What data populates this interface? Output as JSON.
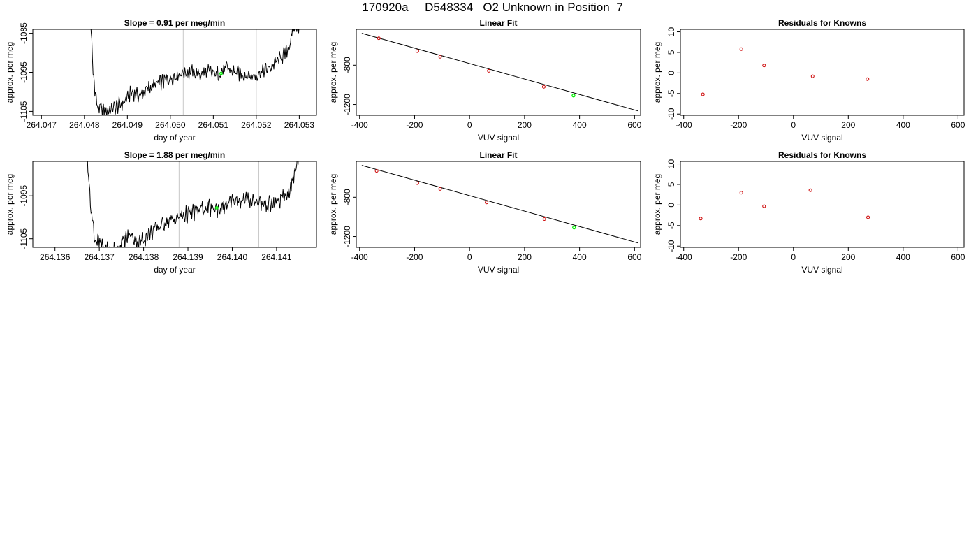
{
  "page_title": "170920a     D548334   O2 Unknown in Position  7",
  "chart_data": [
    {
      "id": "ts1",
      "type": "line",
      "title": "Slope =  0.91  per meg/min",
      "xlabel": "day of year",
      "ylabel": "approx. per meg",
      "xlim": [
        264.0468,
        264.0534
      ],
      "ylim": [
        -1106,
        -1084
      ],
      "x_ticks": [
        264.047,
        264.048,
        264.049,
        264.05,
        264.051,
        264.052,
        264.053
      ],
      "x_tick_labels": [
        "264.047",
        "264.048",
        "264.049",
        "264.050",
        "264.051",
        "264.052",
        "264.053"
      ],
      "y_ticks": [
        -1085,
        -1095,
        -1105
      ],
      "y_tick_labels": [
        "-1085",
        "-1095",
        "-1105"
      ],
      "vlines": [
        264.0503,
        264.052
      ],
      "x_start": 264.0481,
      "x_end": 264.053,
      "anchors": [
        [
          264.0481,
          -1070
        ],
        [
          264.0482,
          -1095
        ],
        [
          264.0483,
          -1104
        ],
        [
          264.0485,
          -1105
        ],
        [
          264.0487,
          -1104
        ],
        [
          264.0489,
          -1103
        ],
        [
          264.0491,
          -1100
        ],
        [
          264.0493,
          -1101
        ],
        [
          264.0495,
          -1099
        ],
        [
          264.0497,
          -1098
        ],
        [
          264.0499,
          -1097
        ],
        [
          264.0501,
          -1096
        ],
        [
          264.0503,
          -1095
        ],
        [
          264.0505,
          -1095
        ],
        [
          264.0507,
          -1095.5
        ],
        [
          264.0509,
          -1095
        ],
        [
          264.0511,
          -1095.5
        ],
        [
          264.0513,
          -1094
        ],
        [
          264.0515,
          -1095
        ],
        [
          264.0517,
          -1095.5
        ],
        [
          264.0519,
          -1096
        ],
        [
          264.0521,
          -1095
        ],
        [
          264.0523,
          -1094
        ],
        [
          264.0525,
          -1092
        ],
        [
          264.0527,
          -1090
        ],
        [
          264.0528,
          -1087
        ],
        [
          264.0529,
          -1083
        ]
      ],
      "unknown_point": [
        264.05118,
        -1095.3
      ],
      "line_color": "#000000",
      "vline_color": "#c8c8c8",
      "unknown_color": "#00ee00"
    },
    {
      "id": "fit1",
      "type": "scatter",
      "title": "Linear Fit",
      "xlabel": "VUV signal",
      "ylabel": "approx. per meg",
      "xlim": [
        -412,
        622
      ],
      "ylim": [
        -1310,
        -435
      ],
      "x_ticks": [
        -400,
        -200,
        0,
        200,
        400,
        600
      ],
      "x_tick_labels": [
        "-400",
        "-200",
        "0",
        "200",
        "400",
        "600"
      ],
      "y_ticks": [
        -800,
        -1200
      ],
      "y_tick_labels": [
        "-800",
        "-1200"
      ],
      "fit_line": [
        [
          -392,
          -475
        ],
        [
          612,
          -1265
        ]
      ],
      "knowns": [
        [
          -330,
          -526
        ],
        [
          -190,
          -656
        ],
        [
          -107,
          -714
        ],
        [
          70,
          -857
        ],
        [
          270,
          -1020
        ]
      ],
      "unknown": [
        378,
        -1109
      ],
      "known_color": "#cc0000",
      "unknown_color": "#00ee00"
    },
    {
      "id": "res1",
      "type": "scatter",
      "title": "Residuals for Knowns",
      "xlabel": "VUV signal",
      "ylabel": "approx. per meg",
      "xlim": [
        -412,
        622
      ],
      "ylim": [
        -10.3,
        10.6
      ],
      "x_ticks": [
        -400,
        -200,
        0,
        200,
        400,
        600
      ],
      "x_tick_labels": [
        "-400",
        "-200",
        "0",
        "200",
        "400",
        "600"
      ],
      "y_ticks": [
        10,
        5,
        0,
        -5,
        -10
      ],
      "y_tick_labels": [
        "10",
        "5",
        "0",
        "-5",
        "-10"
      ],
      "points": [
        [
          -330,
          -5.2
        ],
        [
          -190,
          5.8
        ],
        [
          -107,
          1.8
        ],
        [
          70,
          -0.8
        ],
        [
          270,
          -1.5
        ]
      ],
      "point_color": "#cc0000"
    },
    {
      "id": "ts2",
      "type": "line",
      "title": "Slope =  1.88  per meg/min",
      "xlabel": "day of year",
      "ylabel": "approx. per meg",
      "xlim": [
        264.1355,
        264.1419
      ],
      "ylim": [
        -1107,
        -1087
      ],
      "x_ticks": [
        264.136,
        264.137,
        264.138,
        264.139,
        264.14,
        264.141
      ],
      "x_tick_labels": [
        "264.136",
        "264.137",
        "264.138",
        "264.139",
        "264.140",
        "264.141"
      ],
      "y_ticks": [
        -1095,
        -1105
      ],
      "y_tick_labels": [
        "-1095",
        "-1105"
      ],
      "vlines": [
        264.1388,
        264.1406
      ],
      "x_start": 264.1367,
      "x_end": 264.1415,
      "anchors": [
        [
          264.1367,
          -1080
        ],
        [
          264.1368,
          -1097
        ],
        [
          264.1369,
          -1105
        ],
        [
          264.1371,
          -1107
        ],
        [
          264.1373,
          -1108
        ],
        [
          264.1375,
          -1106
        ],
        [
          264.1377,
          -1104
        ],
        [
          264.1379,
          -1106
        ],
        [
          264.1381,
          -1104
        ],
        [
          264.1383,
          -1102.5
        ],
        [
          264.1385,
          -1101
        ],
        [
          264.1387,
          -1100.5
        ],
        [
          264.1389,
          -1099.5
        ],
        [
          264.1391,
          -1099
        ],
        [
          264.1393,
          -1098
        ],
        [
          264.1395,
          -1098
        ],
        [
          264.1397,
          -1098
        ],
        [
          264.1399,
          -1097
        ],
        [
          264.1401,
          -1096
        ],
        [
          264.1403,
          -1096
        ],
        [
          264.1405,
          -1096
        ],
        [
          264.1407,
          -1097
        ],
        [
          264.1409,
          -1097
        ],
        [
          264.1411,
          -1096
        ],
        [
          264.1413,
          -1094
        ],
        [
          264.1414,
          -1090
        ],
        [
          264.1415,
          -1085
        ]
      ],
      "unknown_point": [
        264.13965,
        -1097.8
      ],
      "line_color": "#000000",
      "vline_color": "#c8c8c8",
      "unknown_color": "#00ee00"
    },
    {
      "id": "fit2",
      "type": "scatter",
      "title": "Linear Fit",
      "xlabel": "VUV signal",
      "ylabel": "approx. per meg",
      "xlim": [
        -412,
        622
      ],
      "ylim": [
        -1310,
        -435
      ],
      "x_ticks": [
        -400,
        -200,
        0,
        200,
        400,
        600
      ],
      "x_tick_labels": [
        "-400",
        "-200",
        "0",
        "200",
        "400",
        "600"
      ],
      "y_ticks": [
        -800,
        -1200
      ],
      "y_tick_labels": [
        "-800",
        "-1200"
      ],
      "fit_line": [
        [
          -392,
          -475
        ],
        [
          612,
          -1265
        ]
      ],
      "knowns": [
        [
          -338,
          -532
        ],
        [
          -190,
          -656
        ],
        [
          -107,
          -715
        ],
        [
          62,
          -853
        ],
        [
          272,
          -1022
        ]
      ],
      "unknown": [
        380,
        -1108
      ],
      "known_color": "#cc0000",
      "unknown_color": "#00ee00"
    },
    {
      "id": "res2",
      "type": "scatter",
      "title": "Residuals for Knowns",
      "xlabel": "VUV signal",
      "ylabel": "approx. per meg",
      "xlim": [
        -412,
        622
      ],
      "ylim": [
        -10.3,
        10.6
      ],
      "x_ticks": [
        -400,
        -200,
        0,
        200,
        400,
        600
      ],
      "x_tick_labels": [
        "-400",
        "-200",
        "0",
        "200",
        "400",
        "600"
      ],
      "y_ticks": [
        10,
        5,
        0,
        -5,
        -10
      ],
      "y_tick_labels": [
        "10",
        "5",
        "0",
        "-5",
        "-10"
      ],
      "points": [
        [
          -338,
          -3.3
        ],
        [
          -190,
          3.0
        ],
        [
          -107,
          -0.3
        ],
        [
          62,
          3.6
        ],
        [
          272,
          -3.0
        ]
      ],
      "point_color": "#cc0000"
    }
  ]
}
